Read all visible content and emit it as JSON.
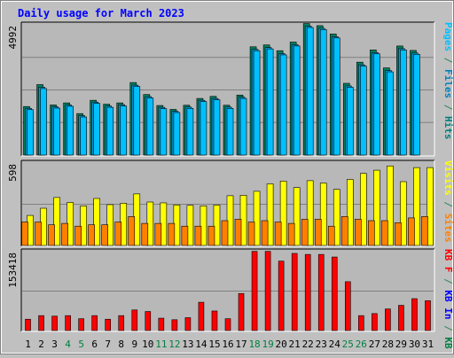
{
  "chart_data": [
    {
      "type": "bar",
      "title": "Daily usage for March 2023",
      "ylabel_parts": [
        {
          "text": "Pages",
          "color": "#00c0ff"
        },
        {
          "text": " / ",
          "color": "#2e8b57"
        },
        {
          "text": "Files",
          "color": "#0080c0"
        },
        {
          "text": " / ",
          "color": "#2e8b57"
        },
        {
          "text": "Hits",
          "color": "#008080"
        }
      ],
      "ymax_label": "4992",
      "ylim": [
        0,
        4992
      ],
      "categories": [
        "1",
        "2",
        "3",
        "4",
        "5",
        "6",
        "7",
        "8",
        "9",
        "10",
        "11",
        "12",
        "13",
        "14",
        "15",
        "16",
        "17",
        "18",
        "19",
        "20",
        "21",
        "22",
        "23",
        "24",
        "25",
        "26",
        "27",
        "28",
        "29",
        "30",
        "31"
      ],
      "weekend_days": [
        "4",
        "5",
        "11",
        "12",
        "18",
        "19",
        "25",
        "26"
      ],
      "series": [
        {
          "name": "Hits",
          "color": "#008060",
          "values": [
            1860,
            2700,
            1920,
            2000,
            1590,
            2100,
            1950,
            2000,
            2780,
            2320,
            1900,
            1750,
            1910,
            2170,
            2250,
            1910,
            2300,
            4150,
            4220,
            4000,
            4330,
            5040,
            4960,
            4640,
            2750,
            3560,
            4030,
            3340,
            4180,
            4010,
            1
          ]
        },
        {
          "name": "Files",
          "color": "#00a0e0",
          "values": [
            1790,
            2600,
            1850,
            1920,
            1510,
            2030,
            1880,
            1930,
            2680,
            2240,
            1830,
            1680,
            1840,
            2100,
            2170,
            1840,
            2220,
            4050,
            4120,
            3890,
            4230,
            4940,
            4860,
            4540,
            2650,
            3460,
            3930,
            3240,
            4080,
            3910,
            0
          ]
        },
        {
          "name": "Pages",
          "color": "#00c0ff",
          "values": [
            1740,
            2550,
            1800,
            1870,
            1460,
            1980,
            1830,
            1880,
            2630,
            2190,
            1780,
            1630,
            1790,
            2050,
            2120,
            1790,
            2170,
            4000,
            4070,
            3840,
            4180,
            4890,
            4810,
            4490,
            2600,
            3410,
            3880,
            3190,
            4030,
            3860,
            0
          ]
        }
      ]
    },
    {
      "type": "bar",
      "ylabel_parts": [
        {
          "text": "Visits",
          "color": "#ffff00"
        },
        {
          "text": " / ",
          "color": "#2e8b57"
        },
        {
          "text": "Sites",
          "color": "#ff8000"
        }
      ],
      "ymax_label": "598",
      "ylim": [
        0,
        598
      ],
      "categories": [
        "1",
        "2",
        "3",
        "4",
        "5",
        "6",
        "7",
        "8",
        "9",
        "10",
        "11",
        "12",
        "13",
        "14",
        "15",
        "16",
        "17",
        "18",
        "19",
        "20",
        "21",
        "22",
        "23",
        "24",
        "25",
        "26",
        "27",
        "28",
        "29",
        "30",
        "31"
      ],
      "series": [
        {
          "name": "Visits",
          "color": "#ffff00",
          "values": [
            218,
            270,
            348,
            312,
            287,
            341,
            296,
            306,
            374,
            315,
            309,
            294,
            291,
            287,
            293,
            361,
            364,
            393,
            447,
            467,
            420,
            470,
            453,
            407,
            479,
            523,
            546,
            577,
            463,
            565,
            565
          ]
        },
        {
          "name": "Sites",
          "color": "#ff8000",
          "values": [
            170,
            170,
            150,
            160,
            140,
            150,
            150,
            170,
            210,
            160,
            160,
            160,
            140,
            140,
            140,
            180,
            190,
            170,
            180,
            170,
            160,
            190,
            190,
            140,
            210,
            190,
            180,
            180,
            165,
            200,
            210
          ]
        }
      ]
    },
    {
      "type": "bar",
      "ylabel_parts": [
        {
          "text": "KB F",
          "color": "#ff0000"
        },
        {
          "text": " / ",
          "color": "#2e8b57"
        },
        {
          "text": "KB In",
          "color": "#0000ff"
        },
        {
          "text": " / ",
          "color": "#2e8b57"
        },
        {
          "text": "KB Out",
          "color": "#008040"
        }
      ],
      "ymax_label": "153418",
      "ylim": [
        0,
        153418
      ],
      "categories": [
        "1",
        "2",
        "3",
        "4",
        "5",
        "6",
        "7",
        "8",
        "9",
        "10",
        "11",
        "12",
        "13",
        "14",
        "15",
        "16",
        "17",
        "18",
        "19",
        "20",
        "21",
        "22",
        "23",
        "24",
        "25",
        "26",
        "27",
        "28",
        "29",
        "30",
        "31"
      ],
      "series": [
        {
          "name": "KB F",
          "color": "#ff0000",
          "values": [
            22000,
            29000,
            28000,
            29000,
            23000,
            29000,
            22000,
            29000,
            40000,
            37000,
            24000,
            21000,
            25000,
            55000,
            38000,
            23000,
            72000,
            154000,
            154000,
            135000,
            150000,
            148000,
            148000,
            143000,
            95000,
            29000,
            33000,
            42000,
            49000,
            62000,
            58000
          ]
        }
      ]
    }
  ]
}
